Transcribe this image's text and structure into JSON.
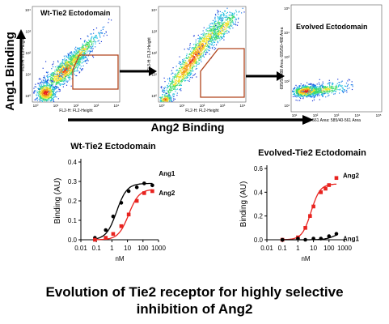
{
  "colors": {
    "wt_ang1": "#000000",
    "wt_ang2": "#e8231f",
    "ev_ang1": "#000000",
    "ev_ang2": "#e8231f",
    "gate": "#b0441c"
  },
  "flow": {
    "axis_y_label": "Ang1 Binding",
    "axis_x_label": "Ang2 Binding",
    "panels": [
      {
        "title": "Wt-Tie2 Ectodomain",
        "xlabel": "FL2-H: FL2-Height",
        "ylabel": "FL3-H: FL3-Height",
        "yticks": [
          "10⁴",
          "10³",
          "10²",
          "10¹",
          "10⁰"
        ],
        "xticks": [
          "10⁰",
          "10¹",
          "10²",
          "10³",
          "10⁴"
        ]
      },
      {
        "title": "",
        "xlabel": "FL2-H: FL2-Height",
        "ylabel": "FL3-H: FL3-Height",
        "yticks": [
          "10⁴",
          "10³",
          "10²",
          "10¹",
          "10⁰"
        ],
        "xticks": [
          "10⁰",
          "10¹",
          "10²",
          "10³",
          "10⁴"
        ]
      },
      {
        "title": "Evolved Ectodomain",
        "xlabel": "561 Area: 585/40-561 Area",
        "ylabel": "695/50-488 Area: 695/50-488 Area",
        "yticks": [
          "10⁵",
          "10⁴",
          "10³",
          "10²",
          "10¹"
        ],
        "xticks": [
          "10¹",
          "10²",
          "10³",
          "10⁴",
          "10⁵"
        ]
      }
    ]
  },
  "chart_data": [
    {
      "type": "scatter",
      "title": "Wt-Tie2 Ectodomain",
      "xlabel": "nM",
      "ylabel": "Binding (AU)",
      "x_scale": "log",
      "xlim": [
        0.01,
        1000
      ],
      "ylim": [
        0,
        0.4
      ],
      "x_ticks": [
        "0.01",
        "0.1",
        "1",
        "10",
        "100",
        "1000"
      ],
      "y_ticks": [
        "0.0",
        "0.1",
        "0.2",
        "0.3",
        "0.4"
      ],
      "series": [
        {
          "name": "Ang1",
          "x": [
            0.08,
            0.4,
            1.2,
            4,
            12,
            40,
            120,
            400
          ],
          "y": [
            0.01,
            0.05,
            0.12,
            0.19,
            0.25,
            0.27,
            0.29,
            0.28
          ],
          "fit": {
            "bottom": 0.0,
            "top": 0.29,
            "ec50": 2.0,
            "hill": 1.3
          }
        },
        {
          "name": "Ang2",
          "x": [
            0.08,
            0.4,
            1.2,
            4,
            12,
            40,
            120,
            400
          ],
          "y": [
            0.0,
            0.01,
            0.03,
            0.07,
            0.13,
            0.2,
            0.24,
            0.25
          ],
          "fit": {
            "bottom": 0.0,
            "top": 0.26,
            "ec50": 12,
            "hill": 1.3
          }
        }
      ]
    },
    {
      "type": "scatter",
      "title": "Evolved-Tie2 Ectodomain",
      "xlabel": "nM",
      "ylabel": "Binding (AU)",
      "x_scale": "log",
      "xlim": [
        0.01,
        1000
      ],
      "ylim": [
        0,
        0.6
      ],
      "x_ticks": [
        "0.01",
        "0.1",
        "1",
        "10",
        "100",
        "1000"
      ],
      "y_ticks": [
        "0.0",
        "0.2",
        "0.4",
        "0.6"
      ],
      "series": [
        {
          "name": "Ang2",
          "x": [
            0.1,
            1,
            3,
            6,
            10,
            30,
            60,
            100,
            300
          ],
          "y": [
            0.0,
            0.02,
            0.1,
            0.2,
            0.28,
            0.4,
            0.43,
            0.46,
            0.52
          ],
          "fit": {
            "bottom": 0.0,
            "top": 0.47,
            "ec50": 7,
            "hill": 1.5
          }
        },
        {
          "name": "Ang1",
          "x": [
            0.1,
            1,
            3,
            10,
            30,
            100,
            300
          ],
          "y": [
            0.0,
            0.01,
            0.0,
            0.01,
            0.01,
            0.03,
            0.05
          ],
          "fit": {
            "bottom": 0.0,
            "top": 0.06,
            "ec50": 200,
            "hill": 1.5
          }
        }
      ]
    }
  ],
  "caption": {
    "line1": "Evolution of Tie2 receptor for highly selective",
    "line2": "inhibition of Ang2"
  }
}
